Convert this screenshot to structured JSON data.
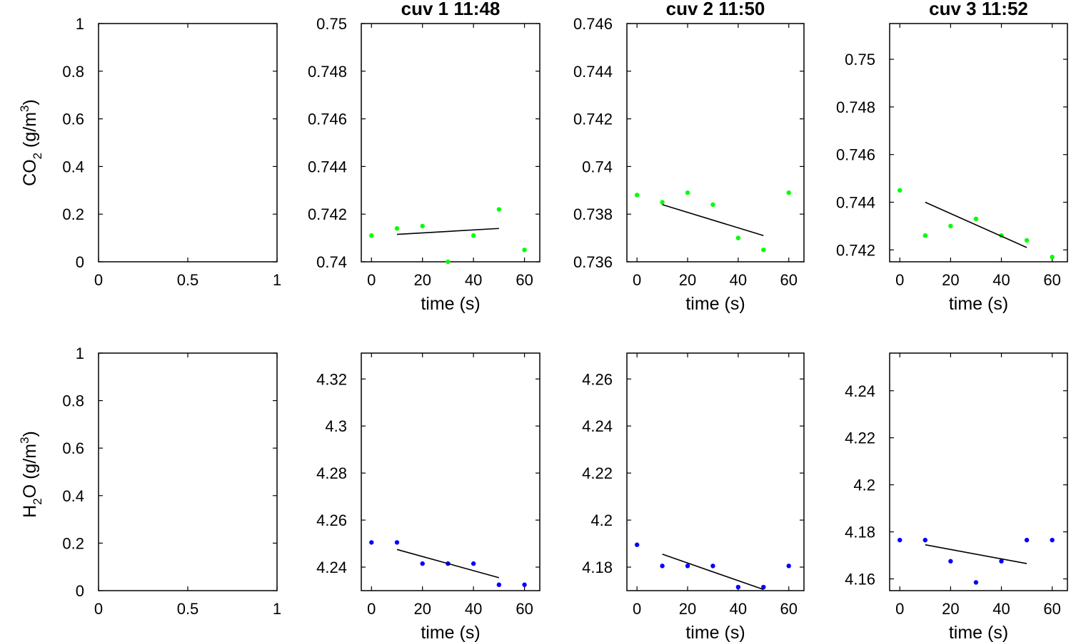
{
  "figure": {
    "co2_ylabel": {
      "main": "CO",
      "sub": "2",
      "unit": " (g/m",
      "sup": "3",
      "close": ")"
    },
    "h2o_ylabel": {
      "pre": "H",
      "sub": "2",
      "main": "O",
      "unit": " (g/m",
      "sup": "3",
      "close": ")"
    }
  },
  "chart_data": [
    {
      "id": "co2-empty",
      "type": "scatter",
      "title": "",
      "xlabel": "",
      "xlim": [
        0,
        1
      ],
      "ylim": [
        0,
        1
      ],
      "xticks": [
        0,
        0.5,
        1
      ],
      "xtick_labels": [
        "0",
        "0.5",
        "1"
      ],
      "yticks": [
        0,
        0.2,
        0.4,
        0.6,
        0.8,
        1
      ],
      "ytick_labels": [
        "0",
        "0.2",
        "0.4",
        "0.6",
        "0.8",
        "1"
      ],
      "color": "",
      "points": [],
      "fit": null
    },
    {
      "id": "co2-cuv1",
      "type": "scatter",
      "title": "cuv 1 11:48",
      "xlabel": "time (s)",
      "xlim": [
        -4,
        66
      ],
      "ylim": [
        0.74,
        0.75
      ],
      "xticks": [
        0,
        20,
        40,
        60
      ],
      "xtick_labels": [
        "0",
        "20",
        "40",
        "60"
      ],
      "yticks": [
        0.74,
        0.742,
        0.744,
        0.746,
        0.748,
        0.75
      ],
      "ytick_labels": [
        "0.74",
        "0.742",
        "0.744",
        "0.746",
        "0.748",
        "0.75"
      ],
      "color": "#00ff00",
      "points": [
        [
          0,
          0.7411
        ],
        [
          10,
          0.7414
        ],
        [
          20,
          0.7415
        ],
        [
          30,
          0.74
        ],
        [
          40,
          0.7411
        ],
        [
          50,
          0.7422
        ],
        [
          60,
          0.7405
        ]
      ],
      "fit": [
        [
          10,
          0.74115
        ],
        [
          50,
          0.7414
        ]
      ]
    },
    {
      "id": "co2-cuv2",
      "type": "scatter",
      "title": "cuv 2 11:50",
      "xlabel": "time (s)",
      "xlim": [
        -4,
        66
      ],
      "ylim": [
        0.736,
        0.746
      ],
      "xticks": [
        0,
        20,
        40,
        60
      ],
      "xtick_labels": [
        "0",
        "20",
        "40",
        "60"
      ],
      "yticks": [
        0.736,
        0.738,
        0.74,
        0.742,
        0.744,
        0.746
      ],
      "ytick_labels": [
        "0.736",
        "0.738",
        "0.74",
        "0.742",
        "0.744",
        "0.746"
      ],
      "color": "#00ff00",
      "points": [
        [
          0,
          0.7388
        ],
        [
          10,
          0.7385
        ],
        [
          20,
          0.7389
        ],
        [
          30,
          0.7384
        ],
        [
          40,
          0.737
        ],
        [
          50,
          0.7365
        ],
        [
          60,
          0.7389
        ]
      ],
      "fit": [
        [
          10,
          0.7384
        ],
        [
          50,
          0.7371
        ]
      ]
    },
    {
      "id": "co2-cuv3",
      "type": "scatter",
      "title": "cuv 3 11:52",
      "xlabel": "time (s)",
      "xlim": [
        -4,
        66
      ],
      "ylim": [
        0.7415,
        0.7515
      ],
      "xticks": [
        0,
        20,
        40,
        60
      ],
      "xtick_labels": [
        "0",
        "20",
        "40",
        "60"
      ],
      "yticks": [
        0.742,
        0.744,
        0.746,
        0.748,
        0.75
      ],
      "ytick_labels": [
        "0.742",
        "0.744",
        "0.746",
        "0.748",
        "0.75"
      ],
      "color": "#00ff00",
      "points": [
        [
          0,
          0.7445
        ],
        [
          10,
          0.7426
        ],
        [
          20,
          0.743
        ],
        [
          30,
          0.7433
        ],
        [
          40,
          0.7426
        ],
        [
          50,
          0.7424
        ],
        [
          60,
          0.7417
        ]
      ],
      "fit": [
        [
          10,
          0.744
        ],
        [
          50,
          0.7421
        ]
      ]
    },
    {
      "id": "h2o-empty",
      "type": "scatter",
      "title": "",
      "xlabel": "",
      "xlim": [
        0,
        1
      ],
      "ylim": [
        0,
        1
      ],
      "xticks": [
        0,
        0.5,
        1
      ],
      "xtick_labels": [
        "0",
        "0.5",
        "1"
      ],
      "yticks": [
        0,
        0.2,
        0.4,
        0.6,
        0.8,
        1
      ],
      "ytick_labels": [
        "0",
        "0.2",
        "0.4",
        "0.6",
        "0.8",
        "1"
      ],
      "color": "",
      "points": [],
      "fit": null
    },
    {
      "id": "h2o-cuv1",
      "type": "scatter",
      "title": "",
      "xlabel": "time (s)",
      "xlim": [
        -4,
        66
      ],
      "ylim": [
        4.23,
        4.331
      ],
      "xticks": [
        0,
        20,
        40,
        60
      ],
      "xtick_labels": [
        "0",
        "20",
        "40",
        "60"
      ],
      "yticks": [
        4.24,
        4.26,
        4.28,
        4.3,
        4.32
      ],
      "ytick_labels": [
        "4.24",
        "4.26",
        "4.28",
        "4.3",
        "4.32"
      ],
      "color": "#0000ff",
      "points": [
        [
          0,
          4.2505
        ],
        [
          10,
          4.2505
        ],
        [
          20,
          4.2415
        ],
        [
          30,
          4.2415
        ],
        [
          40,
          4.2415
        ],
        [
          50,
          4.2325
        ],
        [
          60,
          4.2325
        ]
      ],
      "fit": [
        [
          10,
          4.2475
        ],
        [
          50,
          4.2355
        ]
      ]
    },
    {
      "id": "h2o-cuv2",
      "type": "scatter",
      "title": "",
      "xlabel": "time (s)",
      "xlim": [
        -4,
        66
      ],
      "ylim": [
        4.17,
        4.271
      ],
      "xticks": [
        0,
        20,
        40,
        60
      ],
      "xtick_labels": [
        "0",
        "20",
        "40",
        "60"
      ],
      "yticks": [
        4.18,
        4.2,
        4.22,
        4.24,
        4.26
      ],
      "ytick_labels": [
        "4.18",
        "4.2",
        "4.22",
        "4.24",
        "4.26"
      ],
      "color": "#0000ff",
      "points": [
        [
          0,
          4.1895
        ],
        [
          10,
          4.1805
        ],
        [
          20,
          4.1805
        ],
        [
          30,
          4.1805
        ],
        [
          40,
          4.1715
        ],
        [
          50,
          4.1715
        ],
        [
          60,
          4.1805
        ]
      ],
      "fit": [
        [
          10,
          4.1855
        ],
        [
          50,
          4.1705
        ]
      ]
    },
    {
      "id": "h2o-cuv3",
      "type": "scatter",
      "title": "",
      "xlabel": "time (s)",
      "xlim": [
        -4,
        66
      ],
      "ylim": [
        4.155,
        4.256
      ],
      "xticks": [
        0,
        20,
        40,
        60
      ],
      "xtick_labels": [
        "0",
        "20",
        "40",
        "60"
      ],
      "yticks": [
        4.16,
        4.18,
        4.2,
        4.22,
        4.24
      ],
      "ytick_labels": [
        "4.16",
        "4.18",
        "4.2",
        "4.22",
        "4.24"
      ],
      "color": "#0000ff",
      "points": [
        [
          0,
          4.1765
        ],
        [
          10,
          4.1765
        ],
        [
          20,
          4.1675
        ],
        [
          30,
          4.1585
        ],
        [
          40,
          4.1675
        ],
        [
          50,
          4.1765
        ],
        [
          60,
          4.1765
        ]
      ],
      "fit": [
        [
          10,
          4.1745
        ],
        [
          50,
          4.1665
        ]
      ]
    }
  ]
}
